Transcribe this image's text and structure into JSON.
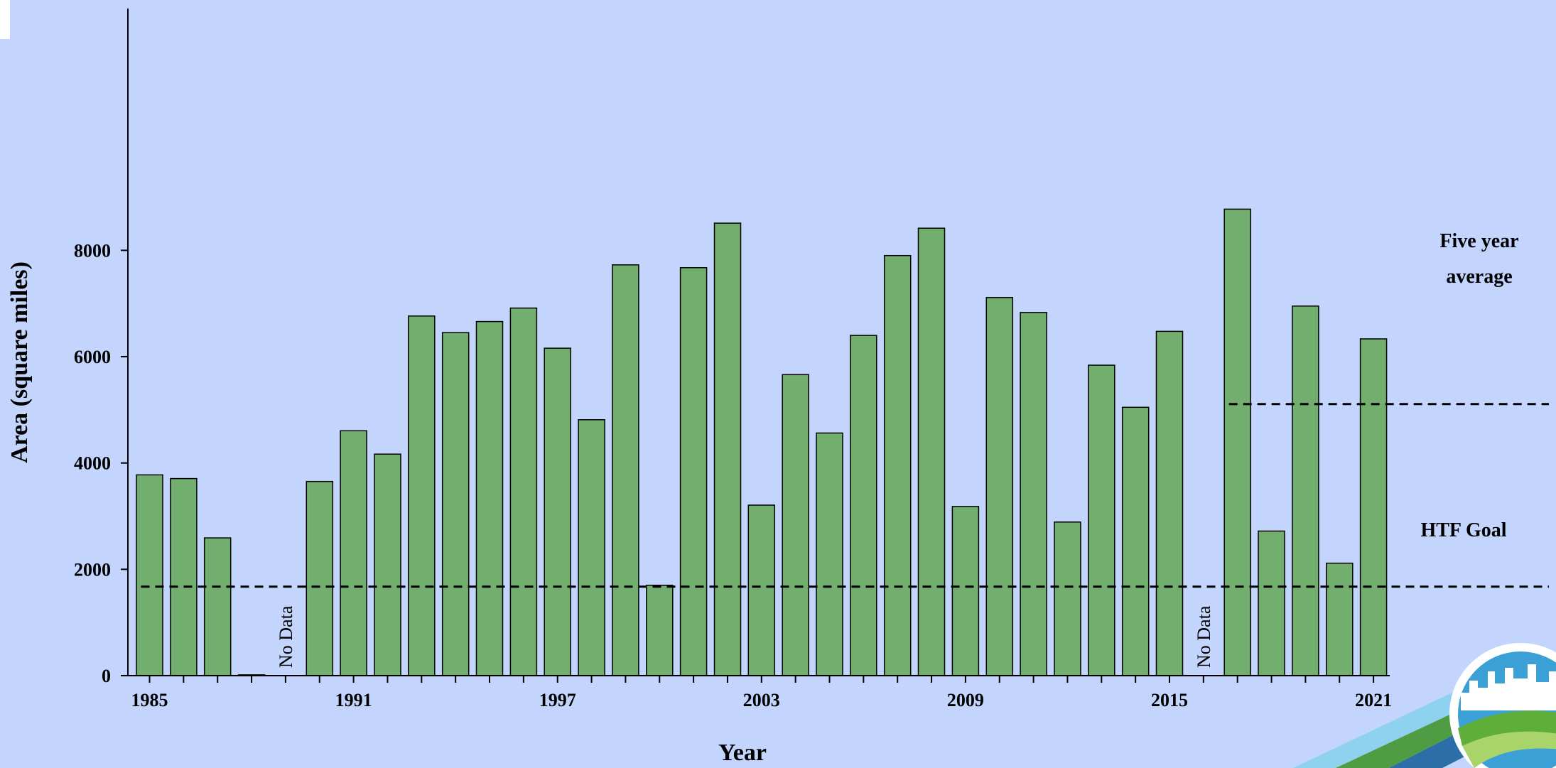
{
  "chart_data": {
    "type": "bar",
    "title": "",
    "xlabel": "Year",
    "ylabel": "Area (square miles)",
    "ylim": [
      0,
      9000
    ],
    "yticks": [
      0,
      2000,
      4000,
      6000,
      8000
    ],
    "xtick_labels": [
      "1985",
      "1991",
      "1997",
      "2003",
      "2009",
      "2015",
      "2021"
    ],
    "grid": false,
    "bar_color": "#72ae6e",
    "categories": [
      1985,
      1986,
      1987,
      1988,
      1989,
      1990,
      1991,
      1992,
      1993,
      1994,
      1995,
      1996,
      1997,
      1998,
      1999,
      2000,
      2001,
      2002,
      2003,
      2004,
      2005,
      2006,
      2007,
      2008,
      2009,
      2010,
      2011,
      2012,
      2013,
      2014,
      2015,
      2016,
      2017,
      2018,
      2019,
      2020,
      2021
    ],
    "values": [
      3776,
      3707,
      2591,
      15,
      null,
      3652,
      4607,
      4167,
      6765,
      6452,
      6660,
      6915,
      6159,
      4813,
      7727,
      1700,
      7673,
      8511,
      3207,
      5662,
      4564,
      6400,
      7902,
      8417,
      3182,
      7112,
      6832,
      2889,
      5840,
      5048,
      6476,
      null,
      8774,
      2720,
      6952,
      2116,
      6334
    ],
    "no_data_label": "No Data",
    "reference_lines": [
      {
        "label_line1": "Five year",
        "label_line2": "average",
        "value": 5107,
        "x_start": 2016.75
      },
      {
        "label": "HTF Goal",
        "value": 1675,
        "x_start": 1984.75
      }
    ]
  }
}
